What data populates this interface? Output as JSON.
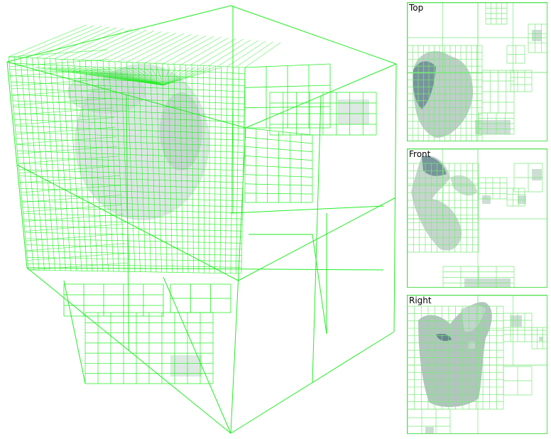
{
  "views": {
    "top": {
      "label": "Top"
    },
    "front": {
      "label": "Front"
    },
    "right": {
      "label": "Right"
    }
  },
  "colors": {
    "grid": "#22ee22",
    "grid_light": "#7ae87a",
    "surface": "#9fb8b2",
    "surface_dark": "#5f7f88",
    "background": "#ffffff"
  }
}
